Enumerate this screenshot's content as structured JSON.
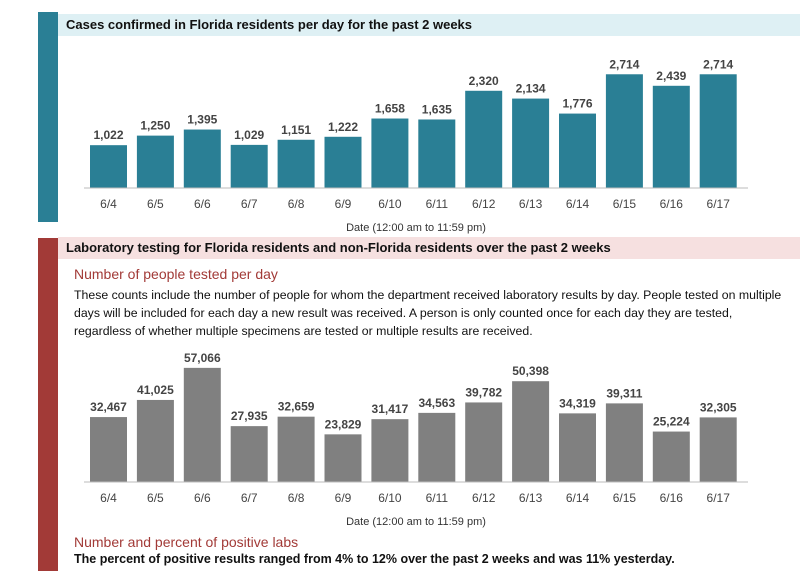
{
  "section1": {
    "header": "Cases confirmed in Florida residents per day for the past 2 weeks"
  },
  "section2": {
    "header": "Laboratory testing for Florida residents and non-Florida residents over the past 2 weeks",
    "subheading": "Number of people tested per day",
    "description": "These counts include the number of people for whom the department received laboratory results by day. People tested on multiple days will be included for each day a new result was received. A person is only counted once for each day they are tested, regardless of whether multiple specimens are tested or multiple results are received.",
    "subheading2": "Number and percent of positive labs",
    "footer": "The percent of positive results ranged from 4% to 12% over the past 2 weeks and was 11% yesterday."
  },
  "colors": {
    "teal": "#2a7f95",
    "gray": "#808080",
    "red": "#a23a37"
  },
  "chart_data": [
    {
      "type": "bar",
      "title": "Cases confirmed in Florida residents per day for the past 2 weeks",
      "categories": [
        "6/4",
        "6/5",
        "6/6",
        "6/7",
        "6/8",
        "6/9",
        "6/10",
        "6/11",
        "6/12",
        "6/13",
        "6/14",
        "6/15",
        "6/16",
        "6/17"
      ],
      "values": [
        1022,
        1250,
        1395,
        1029,
        1151,
        1222,
        1658,
        1635,
        2320,
        2134,
        1776,
        2714,
        2439,
        2714
      ],
      "value_labels": [
        "1,022",
        "1,250",
        "1,395",
        "1,029",
        "1,151",
        "1,222",
        "1,658",
        "1,635",
        "2,320",
        "2,134",
        "1,776",
        "2,714",
        "2,439",
        "2,714"
      ],
      "xlabel": "Date (12:00 am to 11:59 pm)",
      "ylabel": "",
      "ylim": [
        0,
        3150
      ],
      "grid": false,
      "color": "#2a7f95"
    },
    {
      "type": "bar",
      "title": "Number of people tested per day",
      "categories": [
        "6/4",
        "6/5",
        "6/6",
        "6/7",
        "6/8",
        "6/9",
        "6/10",
        "6/11",
        "6/12",
        "6/13",
        "6/14",
        "6/15",
        "6/16",
        "6/17"
      ],
      "values": [
        32467,
        41025,
        57066,
        27935,
        32659,
        23829,
        31417,
        34563,
        39782,
        50398,
        34319,
        39311,
        25224,
        32305
      ],
      "value_labels": [
        "32,467",
        "41,025",
        "57,066",
        "27,935",
        "32,659",
        "23,829",
        "31,417",
        "34,563",
        "39,782",
        "50,398",
        "34,319",
        "39,311",
        "25,224",
        "32,305"
      ],
      "xlabel": "Date (12:00 am to 11:59 pm)",
      "ylabel": "",
      "ylim": [
        0,
        62000
      ],
      "grid": false,
      "color": "#808080"
    }
  ]
}
